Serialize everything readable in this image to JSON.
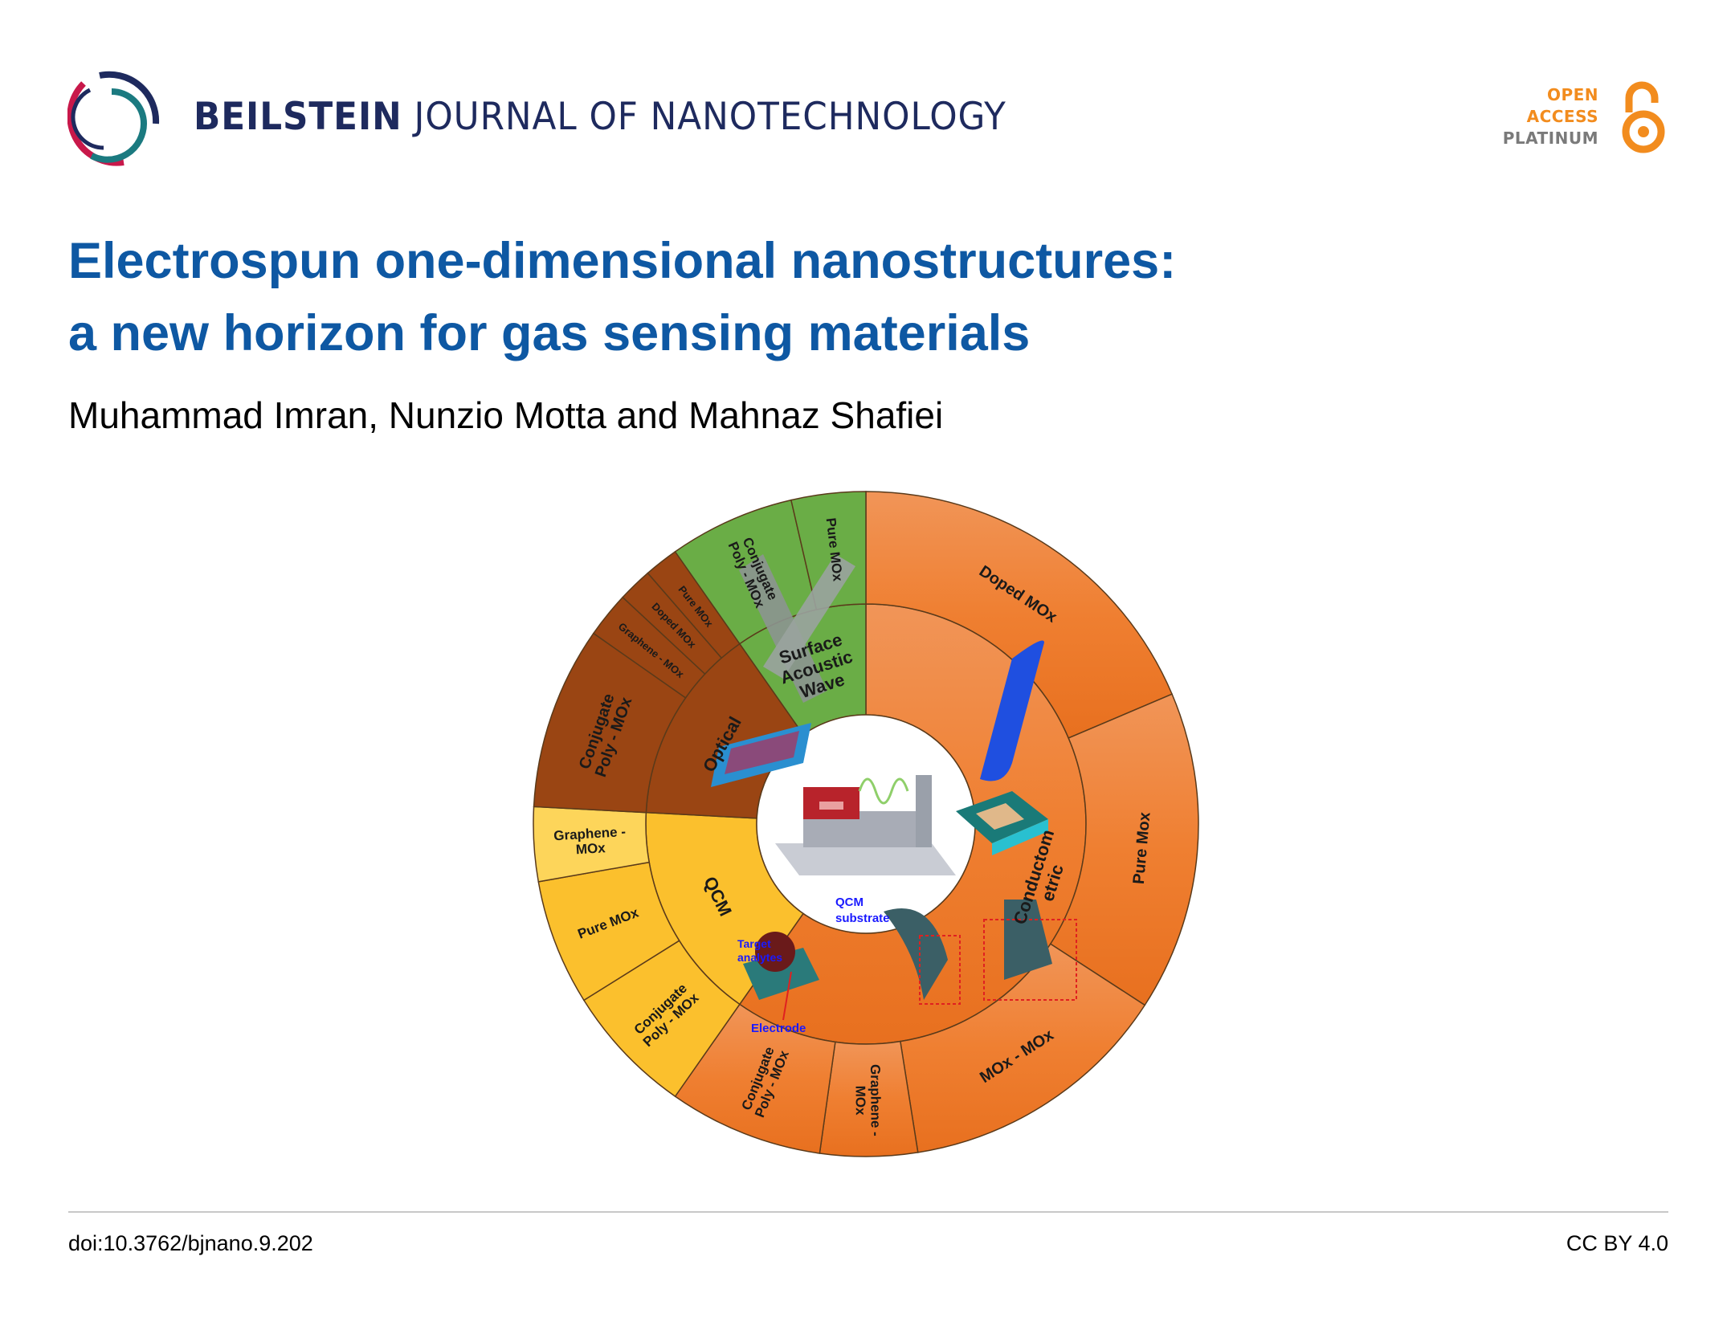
{
  "header": {
    "journal_bold": "BEILSTEIN",
    "journal_rest": "JOURNAL OF NANOTECHNOLOGY",
    "logo_icon": "beilstein-rings-logo",
    "open_access": {
      "line1": "OPEN",
      "line2": "ACCESS",
      "line3": "PLATINUM",
      "icon": "open-lock-icon",
      "color": "#f28c1e",
      "gray": "#7a7a7a"
    }
  },
  "article": {
    "title_line1": "Electrospun one-dimensional nanostructures:",
    "title_line2": "a new horizon for gas sensing materials",
    "authors": "Muhammad Imran, Nunzio Motta and Mahnaz Shafiei",
    "title_color": "#0e58a3"
  },
  "figure": {
    "inner_ring": [
      {
        "label": "Conductometric",
        "lines": [
          "Conductom",
          "etric"
        ],
        "color": "#ee7a2c"
      },
      {
        "label": "QCM",
        "lines": [
          "QCM"
        ],
        "color": "#fbc02d"
      },
      {
        "label": "Optical",
        "lines": [
          "Optical"
        ],
        "color": "#9a4513"
      },
      {
        "label": "Surface Acoustic Wave",
        "lines": [
          "Surface",
          "Acoustic",
          "Wave"
        ],
        "color": "#6aad46"
      }
    ],
    "outer_ring": [
      {
        "lines": [
          "Doped MOx"
        ],
        "parent": 0
      },
      {
        "lines": [
          "Pure Mox"
        ],
        "parent": 0
      },
      {
        "lines": [
          "MOx - MOx"
        ],
        "parent": 0
      },
      {
        "lines": [
          "Graphene -",
          "MOx"
        ],
        "parent": 0
      },
      {
        "lines": [
          "Conjugate",
          "Poly - MOx"
        ],
        "parent": 0
      },
      {
        "lines": [
          "Conjugate",
          "Poly - MOx"
        ],
        "parent": 1
      },
      {
        "lines": [
          "Pure MOx"
        ],
        "parent": 1
      },
      {
        "lines": [
          "Graphene -",
          "MOx"
        ],
        "parent": 1
      },
      {
        "lines": [
          "Conjugate",
          "Poly - MOx"
        ],
        "parent": 2
      },
      {
        "lines": [
          "Graphene - MOx"
        ],
        "parent": 2
      },
      {
        "lines": [
          "Doped MOx"
        ],
        "parent": 2
      },
      {
        "lines": [
          "Pure MOx"
        ],
        "parent": 2
      },
      {
        "lines": [
          "Conjugate",
          "Poly - MOx"
        ],
        "parent": 3
      },
      {
        "lines": [
          "Pure MOx"
        ],
        "parent": 3
      }
    ],
    "annotations": {
      "qcm_substrate_1": "QCM",
      "qcm_substrate_2": "substrate",
      "target_1": "Target",
      "target_2": "analytes",
      "electrode": "Electrode",
      "color": "#1a1aff"
    }
  },
  "footer": {
    "doi": "doi:10.3762/bjnano.9.202",
    "license": "CC BY 4.0"
  }
}
